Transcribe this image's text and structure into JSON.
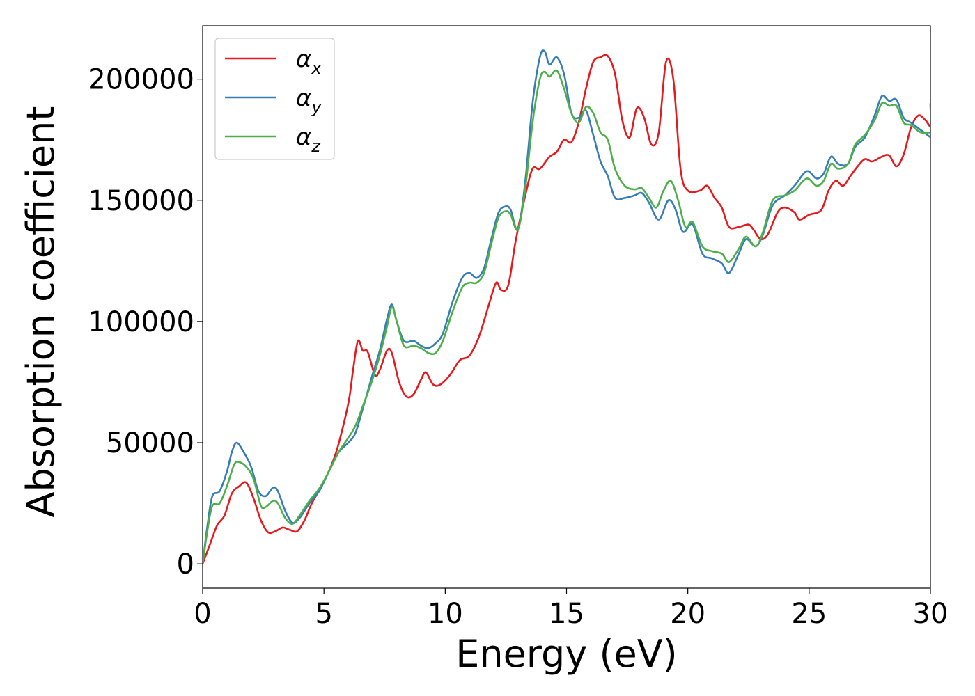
{
  "chart_data": {
    "type": "line",
    "title": "",
    "xlabel": "Energy (eV)",
    "ylabel": "Absorption coefficient",
    "xlim": [
      0,
      30
    ],
    "ylim": [
      -10000,
      222000
    ],
    "x_ticks": [
      0,
      5,
      10,
      15,
      20,
      25,
      30
    ],
    "y_ticks": [
      0,
      50000,
      100000,
      150000,
      200000
    ],
    "x_tick_labels": [
      "0",
      "5",
      "10",
      "15",
      "20",
      "25",
      "30"
    ],
    "y_tick_labels": [
      "0",
      "50000",
      "100000",
      "150000",
      "200000"
    ],
    "grid": false,
    "legend_position": "upper-left",
    "series": [
      {
        "name": "αx",
        "symbol": "α",
        "sub": "x",
        "color": "#e41a1c",
        "points": [
          [
            0,
            0
          ],
          [
            0.3,
            8000
          ],
          [
            0.6,
            16000
          ],
          [
            0.9,
            20000
          ],
          [
            1.2,
            29000
          ],
          [
            1.5,
            32000
          ],
          [
            1.8,
            33500
          ],
          [
            2.1,
            27000
          ],
          [
            2.4,
            18000
          ],
          [
            2.7,
            13000
          ],
          [
            3.0,
            13500
          ],
          [
            3.3,
            15000
          ],
          [
            3.6,
            14000
          ],
          [
            3.9,
            13500
          ],
          [
            4.2,
            18000
          ],
          [
            4.5,
            25000
          ],
          [
            5.0,
            34000
          ],
          [
            5.5,
            46000
          ],
          [
            6.0,
            66000
          ],
          [
            6.2,
            80000
          ],
          [
            6.4,
            92000
          ],
          [
            6.6,
            88000
          ],
          [
            6.8,
            87500
          ],
          [
            7.1,
            78000
          ],
          [
            7.3,
            80000
          ],
          [
            7.6,
            88000
          ],
          [
            7.8,
            87000
          ],
          [
            8.1,
            75000
          ],
          [
            8.4,
            69000
          ],
          [
            8.7,
            70000
          ],
          [
            9.0,
            76000
          ],
          [
            9.2,
            79000
          ],
          [
            9.5,
            74000
          ],
          [
            9.8,
            74000
          ],
          [
            10.2,
            78000
          ],
          [
            10.6,
            84000
          ],
          [
            11.0,
            86000
          ],
          [
            11.4,
            94000
          ],
          [
            11.8,
            107000
          ],
          [
            12.1,
            116000
          ],
          [
            12.3,
            113000
          ],
          [
            12.6,
            115000
          ],
          [
            12.9,
            133000
          ],
          [
            13.3,
            152000
          ],
          [
            13.6,
            163000
          ],
          [
            13.9,
            163000
          ],
          [
            14.3,
            168000
          ],
          [
            14.6,
            170000
          ],
          [
            14.9,
            175000
          ],
          [
            15.2,
            174000
          ],
          [
            15.5,
            182000
          ],
          [
            15.8,
            196000
          ],
          [
            16.1,
            207000
          ],
          [
            16.4,
            209000
          ],
          [
            16.7,
            209500
          ],
          [
            17.0,
            202000
          ],
          [
            17.3,
            183000
          ],
          [
            17.6,
            176000
          ],
          [
            17.9,
            188000
          ],
          [
            18.2,
            184000
          ],
          [
            18.5,
            173000
          ],
          [
            18.8,
            178000
          ],
          [
            19.1,
            207000
          ],
          [
            19.4,
            200000
          ],
          [
            19.7,
            163000
          ],
          [
            20.0,
            154000
          ],
          [
            20.5,
            154000
          ],
          [
            20.8,
            156000
          ],
          [
            21.1,
            151000
          ],
          [
            21.4,
            147000
          ],
          [
            21.7,
            139000
          ],
          [
            22.1,
            139000
          ],
          [
            22.5,
            140000
          ],
          [
            22.7,
            138000
          ],
          [
            23.0,
            134000
          ],
          [
            23.3,
            136000
          ],
          [
            23.7,
            145000
          ],
          [
            24.0,
            147000
          ],
          [
            24.4,
            145000
          ],
          [
            24.6,
            142000
          ],
          [
            25.0,
            144000
          ],
          [
            25.5,
            146000
          ],
          [
            25.8,
            154000
          ],
          [
            26.1,
            158000
          ],
          [
            26.4,
            156000
          ],
          [
            26.7,
            160000
          ],
          [
            27.0,
            164000
          ],
          [
            27.3,
            167000
          ],
          [
            27.6,
            166000
          ],
          [
            28.0,
            168000
          ],
          [
            28.3,
            168500
          ],
          [
            28.6,
            164000
          ],
          [
            28.9,
            169000
          ],
          [
            29.2,
            180000
          ],
          [
            29.5,
            185000
          ],
          [
            29.8,
            183000
          ],
          [
            30.0,
            181000
          ],
          [
            30.0,
            190000
          ]
        ]
      },
      {
        "name": "αy",
        "symbol": "α",
        "sub": "y",
        "color": "#377eb8",
        "points": [
          [
            0,
            0
          ],
          [
            0.2,
            16000
          ],
          [
            0.4,
            28000
          ],
          [
            0.7,
            30000
          ],
          [
            1.0,
            38000
          ],
          [
            1.2,
            46000
          ],
          [
            1.4,
            50000
          ],
          [
            1.7,
            46000
          ],
          [
            2.0,
            40000
          ],
          [
            2.3,
            30000
          ],
          [
            2.6,
            28000
          ],
          [
            2.9,
            31500
          ],
          [
            3.1,
            30000
          ],
          [
            3.4,
            22000
          ],
          [
            3.7,
            17000
          ],
          [
            4.0,
            19000
          ],
          [
            4.4,
            25000
          ],
          [
            4.8,
            30000
          ],
          [
            5.2,
            38000
          ],
          [
            5.6,
            46000
          ],
          [
            6.0,
            50000
          ],
          [
            6.3,
            54000
          ],
          [
            6.6,
            64000
          ],
          [
            7.0,
            78000
          ],
          [
            7.3,
            88000
          ],
          [
            7.6,
            101000
          ],
          [
            7.8,
            107000
          ],
          [
            8.0,
            100000
          ],
          [
            8.3,
            92000
          ],
          [
            8.7,
            92000
          ],
          [
            9.0,
            90000
          ],
          [
            9.3,
            89000
          ],
          [
            9.6,
            91000
          ],
          [
            9.9,
            95000
          ],
          [
            10.3,
            108000
          ],
          [
            10.7,
            118000
          ],
          [
            11.0,
            120000
          ],
          [
            11.3,
            118000
          ],
          [
            11.6,
            122000
          ],
          [
            11.9,
            134000
          ],
          [
            12.2,
            145000
          ],
          [
            12.5,
            147500
          ],
          [
            12.7,
            146000
          ],
          [
            13.0,
            138000
          ],
          [
            13.3,
            158000
          ],
          [
            13.6,
            190000
          ],
          [
            13.9,
            209000
          ],
          [
            14.1,
            211500
          ],
          [
            14.3,
            206000
          ],
          [
            14.6,
            209000
          ],
          [
            14.9,
            202000
          ],
          [
            15.2,
            186000
          ],
          [
            15.5,
            184000
          ],
          [
            15.8,
            187000
          ],
          [
            16.1,
            177000
          ],
          [
            16.4,
            166000
          ],
          [
            16.7,
            160000
          ],
          [
            17.0,
            151000
          ],
          [
            17.4,
            151000
          ],
          [
            17.8,
            152000
          ],
          [
            18.1,
            153000
          ],
          [
            18.4,
            149000
          ],
          [
            18.8,
            142000
          ],
          [
            19.2,
            150000
          ],
          [
            19.5,
            146000
          ],
          [
            19.8,
            137000
          ],
          [
            20.2,
            140000
          ],
          [
            20.6,
            128000
          ],
          [
            21.0,
            126000
          ],
          [
            21.4,
            124000
          ],
          [
            21.7,
            120000
          ],
          [
            22.1,
            128000
          ],
          [
            22.4,
            134000
          ],
          [
            22.8,
            131000
          ],
          [
            23.1,
            136000
          ],
          [
            23.5,
            148000
          ],
          [
            24.0,
            152000
          ],
          [
            24.4,
            156000
          ],
          [
            24.9,
            162000
          ],
          [
            25.3,
            159000
          ],
          [
            25.6,
            161000
          ],
          [
            25.9,
            168000
          ],
          [
            26.2,
            165000
          ],
          [
            26.6,
            165000
          ],
          [
            26.9,
            172000
          ],
          [
            27.3,
            176000
          ],
          [
            27.7,
            185000
          ],
          [
            28.0,
            193000
          ],
          [
            28.3,
            191000
          ],
          [
            28.6,
            191500
          ],
          [
            28.9,
            184000
          ],
          [
            29.2,
            182000
          ],
          [
            29.6,
            179000
          ],
          [
            30.0,
            176000
          ]
        ]
      },
      {
        "name": "αz",
        "symbol": "α",
        "sub": "z",
        "color": "#4daf4a",
        "points": [
          [
            0,
            0
          ],
          [
            0.2,
            14000
          ],
          [
            0.4,
            24000
          ],
          [
            0.7,
            25000
          ],
          [
            1.0,
            32000
          ],
          [
            1.3,
            41000
          ],
          [
            1.5,
            42000
          ],
          [
            1.8,
            40000
          ],
          [
            2.1,
            35000
          ],
          [
            2.4,
            24000
          ],
          [
            2.6,
            23500
          ],
          [
            2.9,
            26000
          ],
          [
            3.1,
            25000
          ],
          [
            3.4,
            19000
          ],
          [
            3.7,
            16500
          ],
          [
            4.0,
            20000
          ],
          [
            4.4,
            26000
          ],
          [
            4.8,
            31000
          ],
          [
            5.2,
            38000
          ],
          [
            5.6,
            46000
          ],
          [
            6.0,
            52000
          ],
          [
            6.3,
            57000
          ],
          [
            6.6,
            65000
          ],
          [
            7.0,
            76000
          ],
          [
            7.3,
            86000
          ],
          [
            7.6,
            98000
          ],
          [
            7.8,
            106000
          ],
          [
            8.0,
            100000
          ],
          [
            8.3,
            90000
          ],
          [
            8.7,
            90000
          ],
          [
            9.0,
            89000
          ],
          [
            9.3,
            87000
          ],
          [
            9.6,
            87000
          ],
          [
            9.9,
            92000
          ],
          [
            10.3,
            104000
          ],
          [
            10.7,
            114000
          ],
          [
            11.0,
            116000
          ],
          [
            11.3,
            116000
          ],
          [
            11.6,
            120000
          ],
          [
            11.9,
            132000
          ],
          [
            12.2,
            143000
          ],
          [
            12.5,
            145500
          ],
          [
            12.7,
            144000
          ],
          [
            13.0,
            138000
          ],
          [
            13.3,
            155000
          ],
          [
            13.6,
            182000
          ],
          [
            13.9,
            200000
          ],
          [
            14.1,
            203000
          ],
          [
            14.3,
            201000
          ],
          [
            14.6,
            203500
          ],
          [
            14.9,
            196000
          ],
          [
            15.2,
            186000
          ],
          [
            15.5,
            182000
          ],
          [
            15.8,
            188500
          ],
          [
            16.1,
            186000
          ],
          [
            16.4,
            178000
          ],
          [
            16.7,
            175000
          ],
          [
            17.0,
            163000
          ],
          [
            17.4,
            156000
          ],
          [
            17.8,
            154500
          ],
          [
            18.1,
            155000
          ],
          [
            18.4,
            151000
          ],
          [
            18.7,
            147000
          ],
          [
            19.0,
            154000
          ],
          [
            19.3,
            158000
          ],
          [
            19.6,
            150000
          ],
          [
            19.9,
            139000
          ],
          [
            20.2,
            141000
          ],
          [
            20.6,
            131000
          ],
          [
            21.0,
            129000
          ],
          [
            21.4,
            128000
          ],
          [
            21.7,
            124500
          ],
          [
            22.1,
            130000
          ],
          [
            22.4,
            135000
          ],
          [
            22.8,
            131000
          ],
          [
            23.1,
            137000
          ],
          [
            23.5,
            150000
          ],
          [
            24.0,
            152000
          ],
          [
            24.4,
            154000
          ],
          [
            24.9,
            159000
          ],
          [
            25.3,
            156000
          ],
          [
            25.6,
            158000
          ],
          [
            25.9,
            165000
          ],
          [
            26.2,
            163000
          ],
          [
            26.6,
            165000
          ],
          [
            26.9,
            173000
          ],
          [
            27.3,
            177000
          ],
          [
            27.7,
            183000
          ],
          [
            28.0,
            190000
          ],
          [
            28.3,
            189000
          ],
          [
            28.6,
            189000
          ],
          [
            28.9,
            182000
          ],
          [
            29.2,
            181000
          ],
          [
            29.6,
            178000
          ],
          [
            30.0,
            178000
          ]
        ]
      }
    ]
  }
}
